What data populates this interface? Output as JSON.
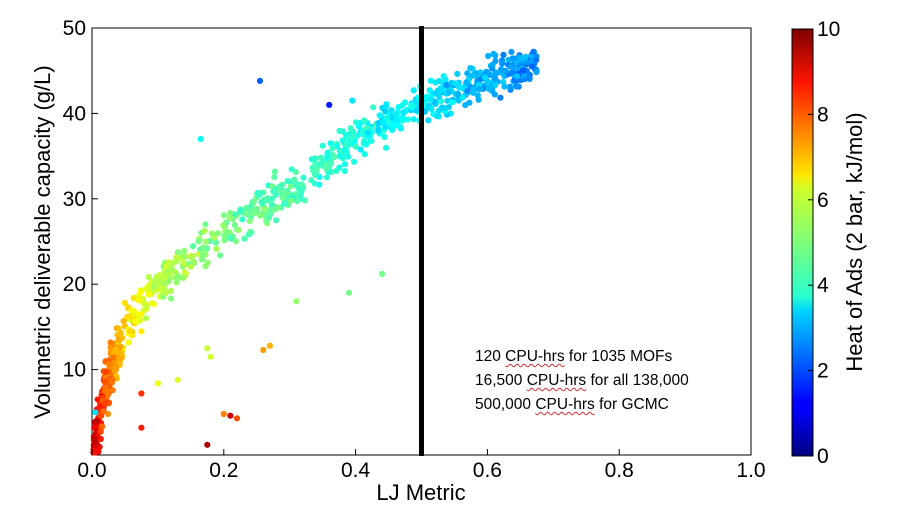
{
  "chart_data": {
    "type": "scatter",
    "xlabel": "LJ Metric",
    "ylabel": "Volumetric deliverable capacity (g/L)",
    "xlim": [
      0.0,
      1.0
    ],
    "ylim": [
      0,
      50
    ],
    "xticks": [
      "0.0",
      "0.2",
      "0.4",
      "0.6",
      "0.8",
      "1.0"
    ],
    "yticks": [
      "10",
      "20",
      "30",
      "40",
      "50"
    ],
    "grid": false,
    "vline_x": 0.5,
    "colorbar": {
      "label": "Heat of Ads (2 bar, kJ/mol)",
      "min": 0,
      "max": 10,
      "ticks": [
        "0",
        "2",
        "4",
        "6",
        "8",
        "10"
      ],
      "colormap": "jet"
    },
    "trend": {
      "description_points": [
        [
          0.005,
          2,
          9.0
        ],
        [
          0.02,
          8,
          7.8
        ],
        [
          0.05,
          15,
          6.6
        ],
        [
          0.1,
          20,
          5.6
        ],
        [
          0.15,
          23,
          5.2
        ],
        [
          0.2,
          26,
          4.9
        ],
        [
          0.3,
          31,
          4.5
        ],
        [
          0.4,
          37,
          4.0
        ],
        [
          0.5,
          41,
          3.6
        ],
        [
          0.6,
          44,
          3.0
        ],
        [
          0.67,
          46,
          2.6
        ]
      ]
    },
    "outliers": [
      [
        0.255,
        43.8,
        2.2
      ],
      [
        0.36,
        41,
        1.5
      ],
      [
        0.165,
        37,
        3.8
      ],
      [
        0.395,
        41.5,
        3.5
      ],
      [
        0.44,
        21.2,
        4.9
      ],
      [
        0.39,
        19,
        4.9
      ],
      [
        0.31,
        18,
        5.2
      ],
      [
        0.27,
        12.8,
        7.0
      ],
      [
        0.26,
        12.3,
        7.2
      ],
      [
        0.175,
        12.5,
        5.7
      ],
      [
        0.18,
        11.5,
        5.8
      ],
      [
        0.13,
        8.8,
        5.9
      ],
      [
        0.1,
        8.4,
        6.1
      ],
      [
        0.075,
        7.2,
        8.3
      ],
      [
        0.2,
        4.8,
        7.5
      ],
      [
        0.21,
        4.6,
        9.3
      ],
      [
        0.22,
        4.3,
        8.0
      ],
      [
        0.075,
        3.2,
        8.5
      ],
      [
        0.175,
        1.2,
        9.6
      ],
      [
        0.005,
        5.0,
        3.5
      ]
    ],
    "point_count": 1035
  },
  "annotation": {
    "line1_a": "120 ",
    "line1_b": "CPU-hrs",
    "line1_c": " for 1035 MOFs",
    "line2_a": "16,500 ",
    "line2_b": "CPU-hrs",
    "line2_c": " for all 138,000",
    "line3_a": "500,000 ",
    "line3_b": "CPU-hrs",
    "line3_c": " for GCMC"
  }
}
